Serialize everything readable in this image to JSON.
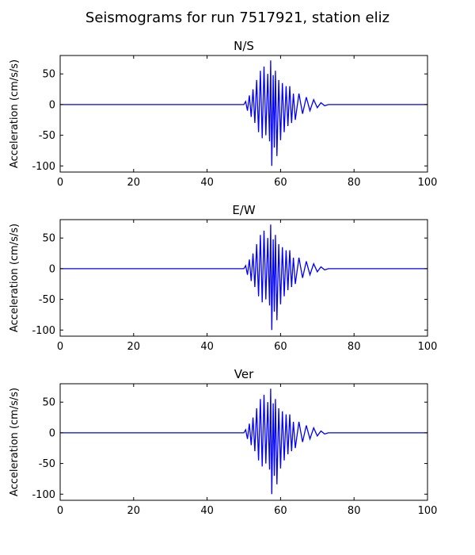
{
  "figure": {
    "title": "Seismograms for run 7517921, station eliz"
  },
  "colors": {
    "trace": "#0000ff",
    "axes": "#000000",
    "background": "#ffffff"
  },
  "chart_data": [
    {
      "type": "line",
      "title": "N/S",
      "xlabel": "",
      "ylabel": "Acceleration (cm/s/s)",
      "xlim": [
        0,
        100
      ],
      "ylim": [
        -110,
        80
      ],
      "xticks": [
        0,
        20,
        40,
        60,
        80,
        100
      ],
      "yticks": [
        50,
        0,
        -50,
        -100
      ],
      "grid": false,
      "series": [
        {
          "x": [
            0,
            50,
            50.5,
            51,
            51.5,
            52,
            52.5,
            53,
            53.5,
            54,
            54.5,
            55,
            55.5,
            56,
            56.5,
            57,
            57.3,
            57.6,
            58,
            58.3,
            58.6,
            59,
            59.5,
            60,
            60.5,
            61,
            61.5,
            62,
            62.5,
            63,
            63.5,
            64,
            65,
            66,
            67,
            68,
            69,
            70,
            71,
            72,
            73,
            100
          ],
          "y": [
            0,
            0,
            5,
            -10,
            15,
            -20,
            25,
            -30,
            40,
            -45,
            55,
            -55,
            62,
            -50,
            50,
            -60,
            72,
            -100,
            48,
            -70,
            55,
            -84,
            40,
            -58,
            35,
            -45,
            30,
            -35,
            30,
            -30,
            18,
            -25,
            18,
            -15,
            12,
            -10,
            8,
            -5,
            3,
            -2,
            0,
            0
          ]
        }
      ]
    },
    {
      "type": "line",
      "title": "E/W",
      "xlabel": "",
      "ylabel": "Acceleration (cm/s/s)",
      "xlim": [
        0,
        100
      ],
      "ylim": [
        -110,
        80
      ],
      "xticks": [
        0,
        20,
        40,
        60,
        80,
        100
      ],
      "yticks": [
        50,
        0,
        -50,
        -100
      ],
      "grid": false,
      "series": [
        {
          "x": [
            0,
            50,
            50.5,
            51,
            51.5,
            52,
            52.5,
            53,
            53.5,
            54,
            54.5,
            55,
            55.5,
            56,
            56.5,
            57,
            57.3,
            57.6,
            58,
            58.3,
            58.6,
            59,
            59.5,
            60,
            60.5,
            61,
            61.5,
            62,
            62.5,
            63,
            63.5,
            64,
            65,
            66,
            67,
            68,
            69,
            70,
            71,
            72,
            73,
            100
          ],
          "y": [
            0,
            0,
            5,
            -10,
            15,
            -20,
            25,
            -30,
            40,
            -45,
            55,
            -55,
            62,
            -50,
            50,
            -60,
            72,
            -100,
            48,
            -70,
            55,
            -84,
            40,
            -58,
            35,
            -45,
            30,
            -35,
            30,
            -30,
            18,
            -25,
            18,
            -15,
            12,
            -10,
            8,
            -5,
            3,
            -2,
            0,
            0
          ]
        }
      ]
    },
    {
      "type": "line",
      "title": "Ver",
      "xlabel": "",
      "ylabel": "Acceleration (cm/s/s)",
      "xlim": [
        0,
        100
      ],
      "ylim": [
        -110,
        80
      ],
      "xticks": [
        0,
        20,
        40,
        60,
        80,
        100
      ],
      "yticks": [
        50,
        0,
        -50,
        -100
      ],
      "grid": false,
      "series": [
        {
          "x": [
            0,
            50,
            50.5,
            51,
            51.5,
            52,
            52.5,
            53,
            53.5,
            54,
            54.5,
            55,
            55.5,
            56,
            56.5,
            57,
            57.3,
            57.6,
            58,
            58.3,
            58.6,
            59,
            59.5,
            60,
            60.5,
            61,
            61.5,
            62,
            62.5,
            63,
            63.5,
            64,
            65,
            66,
            67,
            68,
            69,
            70,
            71,
            72,
            73,
            100
          ],
          "y": [
            0,
            0,
            5,
            -10,
            15,
            -20,
            25,
            -30,
            40,
            -45,
            55,
            -55,
            62,
            -50,
            50,
            -60,
            72,
            -100,
            48,
            -70,
            55,
            -84,
            40,
            -58,
            35,
            -45,
            30,
            -35,
            30,
            -30,
            18,
            -25,
            18,
            -15,
            12,
            -10,
            8,
            -5,
            3,
            -2,
            0,
            0
          ]
        }
      ]
    }
  ]
}
